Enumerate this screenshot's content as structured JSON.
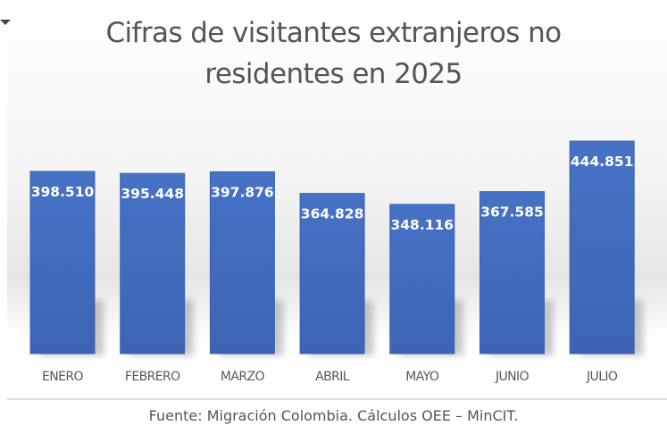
{
  "chart_data": {
    "type": "bar",
    "title": "Cifras de visitantes extranjeros no residentes en 2025",
    "title_lines": [
      "Cifras de visitantes extranjeros no",
      "residentes en 2025"
    ],
    "categories": [
      "ENERO",
      "FEBRERO",
      "MARZO",
      "ABRIL",
      "MAYO",
      "JUNIO",
      "JULIO"
    ],
    "values": [
      398510,
      395448,
      397876,
      364828,
      348116,
      367585,
      444851
    ],
    "data_labels": [
      "398.510",
      "395.448",
      "397.876",
      "364.828",
      "348.116",
      "367.585",
      "444.851"
    ],
    "xlabel": "",
    "ylabel": "",
    "ylim": [
      0,
      500000
    ],
    "grid": false,
    "legend": "none",
    "bar_color": "#4472c4",
    "label_color": "#ffffff"
  },
  "source": "Fuente: Migración Colombia. Cálculos OEE – MinCIT."
}
